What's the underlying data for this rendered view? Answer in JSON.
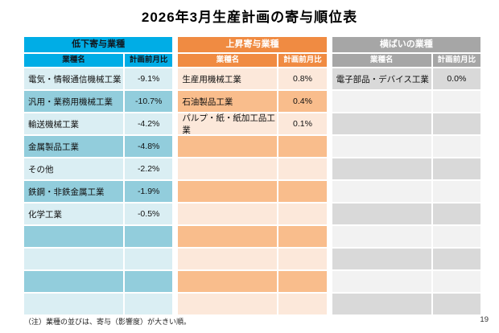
{
  "title": "2026年3月生産計画の寄与順位表",
  "footnote": "（注）業種の並びは、寄与（影響度）が大きい順。",
  "page_number": "19",
  "columns": {
    "name": "業種名",
    "value": "計画前月比"
  },
  "tables": [
    {
      "header": "低下寄与業種",
      "stripe_start": "light",
      "colors": {
        "header_bg": "#00ADE6",
        "header_text": "#101820",
        "row_dark": "#92CDDC",
        "row_light": "#DAEEF3"
      },
      "rows": [
        {
          "name": "電気・情報通信機械工業",
          "value": "-9.1%"
        },
        {
          "name": "汎用・業務用機械工業",
          "value": "-10.7%"
        },
        {
          "name": "輸送機械工業",
          "value": "-4.2%"
        },
        {
          "name": "金属製品工業",
          "value": "-4.8%"
        },
        {
          "name": "その他",
          "value": "-2.2%"
        },
        {
          "name": "鉄鋼・非鉄金属工業",
          "value": "-1.9%"
        },
        {
          "name": "化学工業",
          "value": "-0.5%"
        },
        {
          "name": "",
          "value": ""
        },
        {
          "name": "",
          "value": ""
        },
        {
          "name": "",
          "value": ""
        },
        {
          "name": "",
          "value": ""
        }
      ]
    },
    {
      "header": "上昇寄与業種",
      "stripe_start": "light",
      "colors": {
        "header_bg": "#F08B42",
        "header_text": "#FFFFFF",
        "row_dark": "#F9BD8C",
        "row_light": "#FCE8DA"
      },
      "rows": [
        {
          "name": "生産用機械工業",
          "value": "0.8%"
        },
        {
          "name": "石油製品工業",
          "value": "0.4%"
        },
        {
          "name": "パルプ・紙・紙加工品工業",
          "value": "0.1%"
        },
        {
          "name": "",
          "value": ""
        },
        {
          "name": "",
          "value": ""
        },
        {
          "name": "",
          "value": ""
        },
        {
          "name": "",
          "value": ""
        },
        {
          "name": "",
          "value": ""
        },
        {
          "name": "",
          "value": ""
        },
        {
          "name": "",
          "value": ""
        },
        {
          "name": "",
          "value": ""
        }
      ]
    },
    {
      "header": "横ばいの業種",
      "stripe_start": "dark",
      "colors": {
        "header_bg": "#A6A6A6",
        "header_text": "#FFFFFF",
        "row_dark": "#D9D9D9",
        "row_light": "#F2F2F2"
      },
      "rows": [
        {
          "name": "電子部品・デバイス工業",
          "value": "0.0%"
        },
        {
          "name": "",
          "value": ""
        },
        {
          "name": "",
          "value": ""
        },
        {
          "name": "",
          "value": ""
        },
        {
          "name": "",
          "value": ""
        },
        {
          "name": "",
          "value": ""
        },
        {
          "name": "",
          "value": ""
        },
        {
          "name": "",
          "value": ""
        },
        {
          "name": "",
          "value": ""
        },
        {
          "name": "",
          "value": ""
        },
        {
          "name": "",
          "value": ""
        }
      ]
    }
  ]
}
